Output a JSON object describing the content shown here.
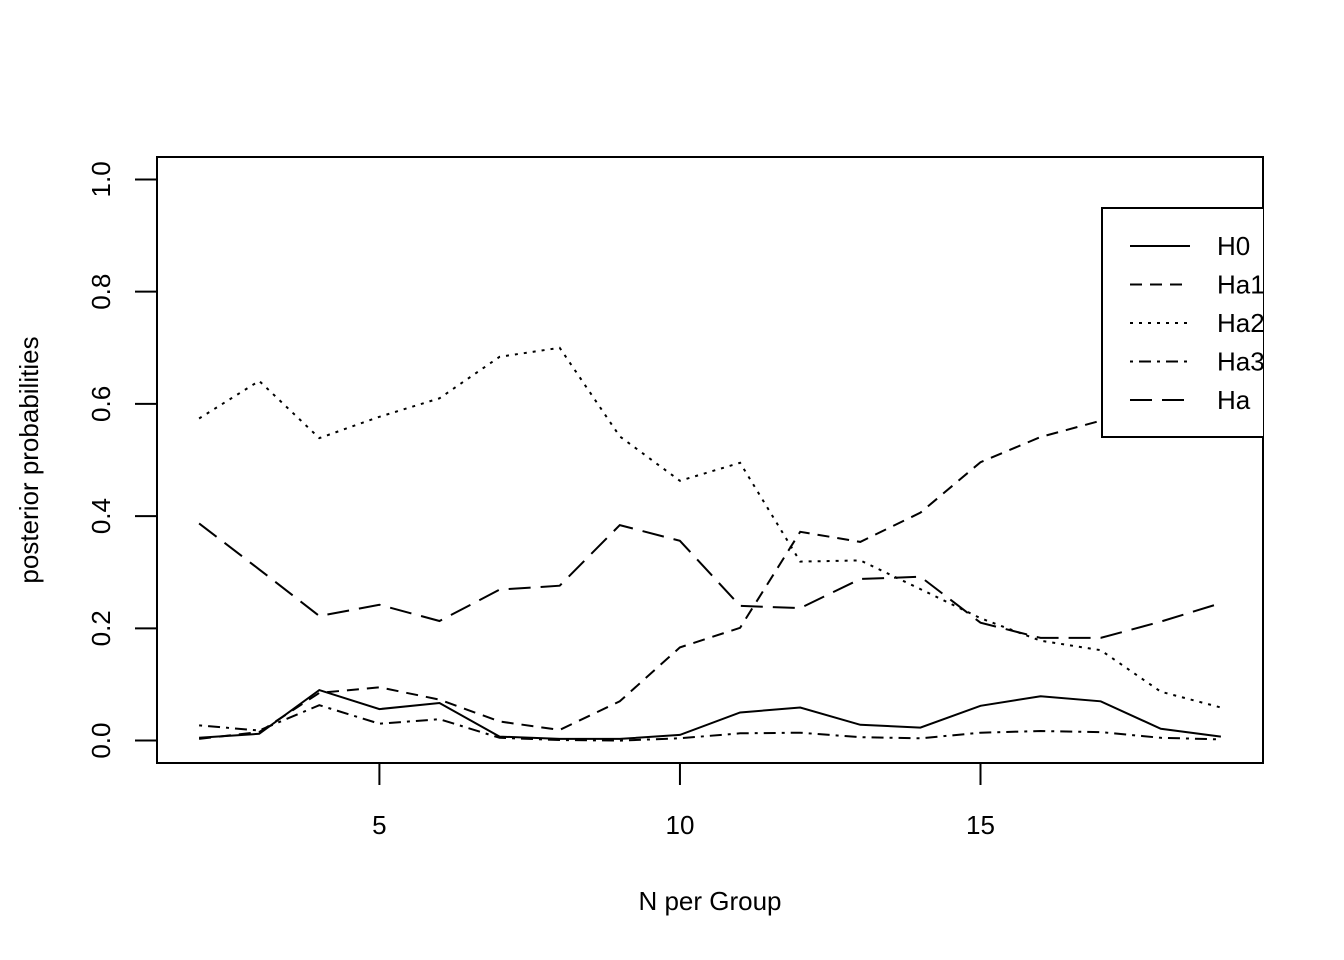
{
  "chart_data": {
    "type": "line",
    "title": "",
    "xlabel": "N per Group",
    "ylabel": "posterior probabilities",
    "xlim": [
      1.3,
      19.7
    ],
    "ylim": [
      -0.04,
      1.04
    ],
    "x_ticks": [
      5,
      10,
      15
    ],
    "y_ticks": [
      0.0,
      0.2,
      0.4,
      0.6,
      0.8,
      1.0
    ],
    "x_tick_labels": [
      "5",
      "10",
      "15"
    ],
    "y_tick_labels": [
      "0.0",
      "0.2",
      "0.4",
      "0.6",
      "0.8",
      "1.0"
    ],
    "legend_position": "top-right",
    "grid": false,
    "x": [
      2,
      3,
      4,
      5,
      6,
      7,
      8,
      9,
      10,
      11,
      12,
      13,
      14,
      15,
      16,
      17,
      18,
      19
    ],
    "series": [
      {
        "name": "H0",
        "legend_label": "H0",
        "dash": "solid",
        "values": [
          0.005,
          0.012,
          0.09,
          0.056,
          0.067,
          0.007,
          0.003,
          0.003,
          0.01,
          0.05,
          0.059,
          0.028,
          0.023,
          0.062,
          0.079,
          0.07,
          0.021,
          0.007
        ]
      },
      {
        "name": "Ha1",
        "legend_label": "Ha1",
        "dash": "dashed",
        "values": [
          0.003,
          0.015,
          0.085,
          0.095,
          0.073,
          0.034,
          0.019,
          0.07,
          0.166,
          0.201,
          0.372,
          0.354,
          0.406,
          0.496,
          0.541,
          0.57,
          0.57,
          0.57
        ]
      },
      {
        "name": "Ha2",
        "legend_label": "Ha2",
        "dash": "dotted",
        "values": [
          0.574,
          0.641,
          0.539,
          0.577,
          0.61,
          0.684,
          0.7,
          0.542,
          0.463,
          0.495,
          0.319,
          0.321,
          0.27,
          0.218,
          0.178,
          0.161,
          0.087,
          0.059
        ]
      },
      {
        "name": "Ha3",
        "legend_label": "Ha3",
        "dash": "dotdash",
        "values": [
          0.027,
          0.018,
          0.063,
          0.03,
          0.038,
          0.005,
          0.001,
          0.0,
          0.004,
          0.013,
          0.014,
          0.006,
          0.004,
          0.014,
          0.017,
          0.015,
          0.005,
          0.002
        ]
      },
      {
        "name": "Ha",
        "legend_label": "Ha",
        "dash": "longdash",
        "values": [
          0.387,
          0.305,
          0.222,
          0.242,
          0.213,
          0.269,
          0.276,
          0.384,
          0.356,
          0.24,
          0.236,
          0.288,
          0.292,
          0.21,
          0.183,
          0.183,
          0.212,
          0.245
        ]
      }
    ]
  }
}
